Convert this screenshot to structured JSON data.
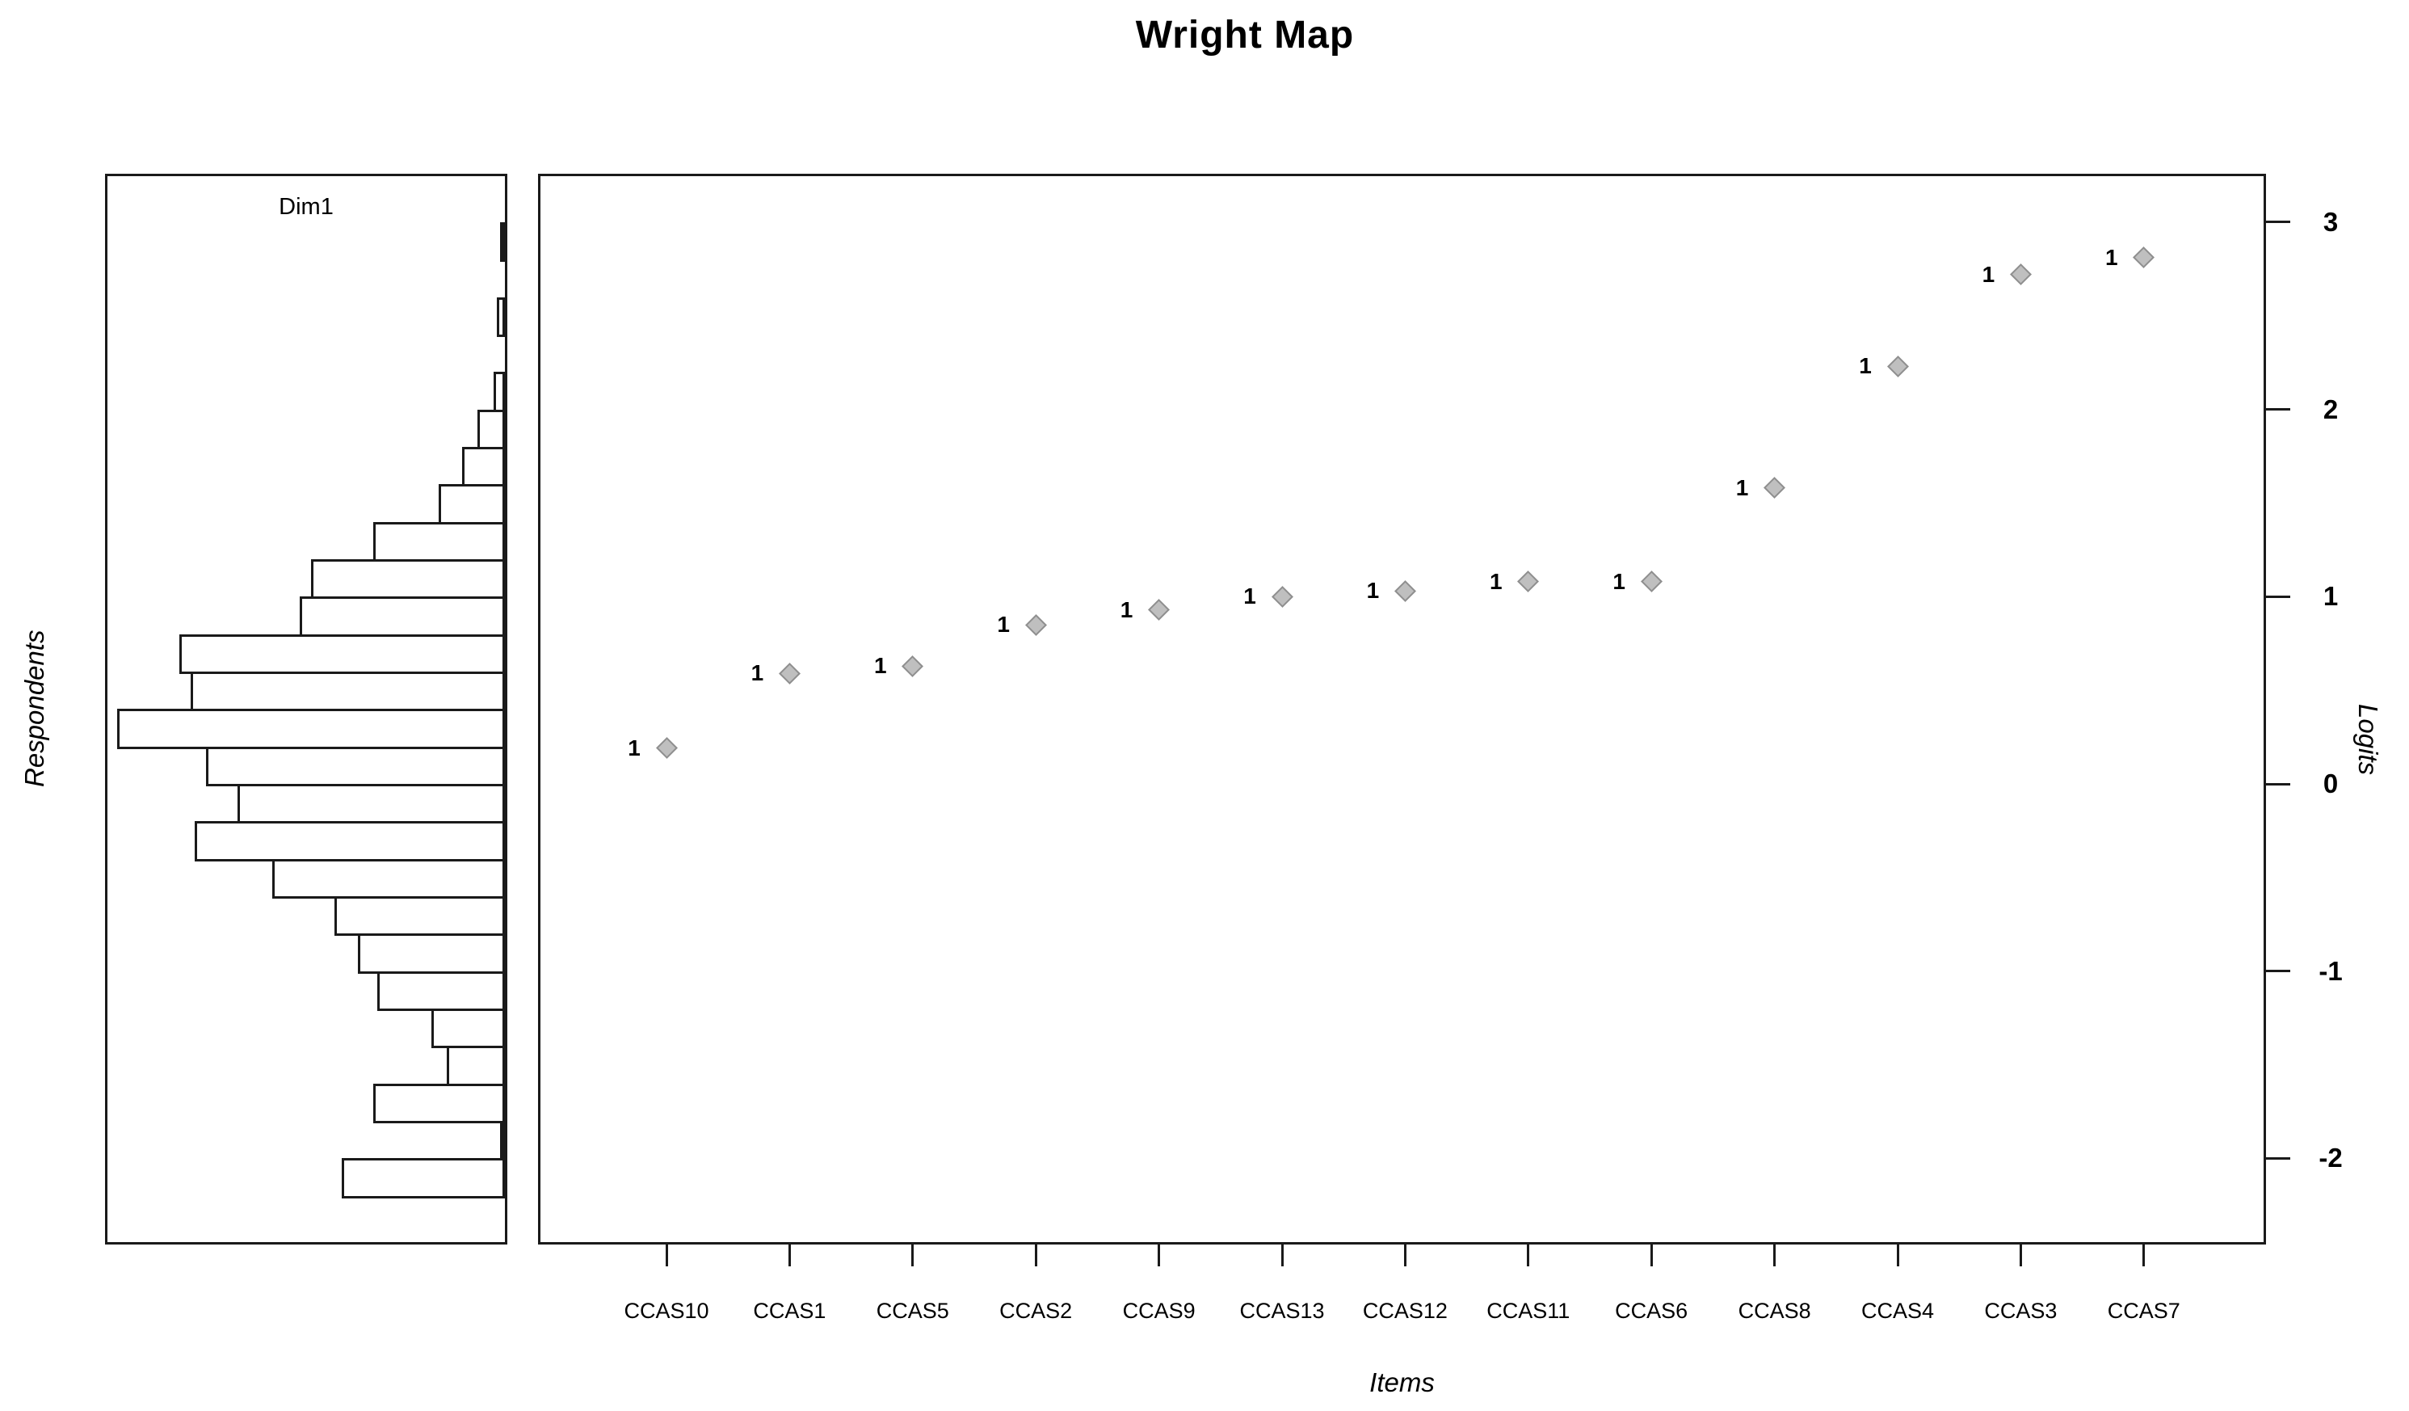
{
  "title": "Wright Map",
  "panels": {
    "respondents": {
      "header": "Dim1",
      "axis_label": "Respondents"
    },
    "items": {
      "x_axis_label": "Items",
      "y_axis_label": "Logits"
    }
  },
  "y_axis": {
    "tick_labels": [
      "3",
      "2",
      "1",
      "0",
      "-1",
      "-2"
    ],
    "tick_values": [
      3,
      2,
      1,
      0,
      -1,
      -2
    ]
  },
  "colors": {
    "marker_fill": "#bfbfbf",
    "marker_stroke": "#8f8f8f",
    "line_color": "#1a1a1a",
    "background": "#ffffff"
  },
  "chart_data": [
    {
      "type": "bar",
      "title": "Dim1",
      "orientation": "horizontal",
      "ylabel": "Respondents",
      "value_axis": "Logits",
      "bin_width": 0.2,
      "bin_centers": [
        2.9,
        2.7,
        2.5,
        2.3,
        2.1,
        1.9,
        1.7,
        1.5,
        1.3,
        1.1,
        0.9,
        0.7,
        0.5,
        0.3,
        0.1,
        -0.1,
        -0.3,
        -0.5,
        -0.7,
        -0.9,
        -1.1,
        -1.3,
        -1.5,
        -1.7,
        -1.9,
        -2.1
      ],
      "counts_relative": [
        1,
        0,
        2,
        0,
        3,
        7,
        11,
        17,
        34,
        50,
        53,
        84,
        81,
        100,
        77,
        69,
        80,
        60,
        44,
        38,
        33,
        19,
        15,
        34,
        1,
        42
      ],
      "bars_right_aligned": true
    },
    {
      "type": "scatter",
      "title": "Wright Map",
      "xlabel": "Items",
      "ylabel": "Logits",
      "ylim": [
        -2.47,
        3.25
      ],
      "marker": "diamond",
      "categories": [
        "CCAS10",
        "CCAS1",
        "CCAS5",
        "CCAS2",
        "CCAS9",
        "CCAS13",
        "CCAS12",
        "CCAS11",
        "CCAS6",
        "CCAS8",
        "CCAS4",
        "CCAS3",
        "CCAS7"
      ],
      "values": [
        0.19,
        0.59,
        0.63,
        0.85,
        0.93,
        1.0,
        1.03,
        1.08,
        1.08,
        1.58,
        2.23,
        2.72,
        2.81
      ],
      "point_labels": [
        "1",
        "1",
        "1",
        "1",
        "1",
        "1",
        "1",
        "1",
        "1",
        "1",
        "1",
        "1",
        "1"
      ]
    }
  ]
}
